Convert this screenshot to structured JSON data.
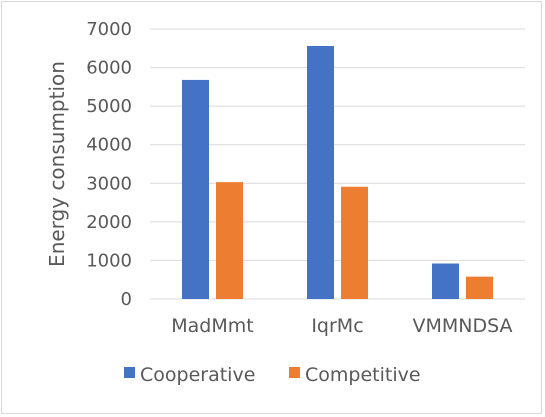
{
  "chart_data": {
    "type": "bar",
    "title": "",
    "xlabel": "",
    "ylabel": "Energy consumption",
    "categories": [
      "MadMmt",
      "IqrMc",
      "VMMNDSA"
    ],
    "series": [
      {
        "name": "Cooperative",
        "color": "#4472c4",
        "values": [
          5680,
          6560,
          920
        ]
      },
      {
        "name": "Competitive",
        "color": "#ed7d31",
        "values": [
          3030,
          2910,
          580
        ]
      }
    ],
    "ylim": [
      0,
      7000
    ],
    "yticks": [
      0,
      1000,
      2000,
      3000,
      4000,
      5000,
      6000,
      7000
    ],
    "grid": true,
    "legend": "bottom"
  }
}
